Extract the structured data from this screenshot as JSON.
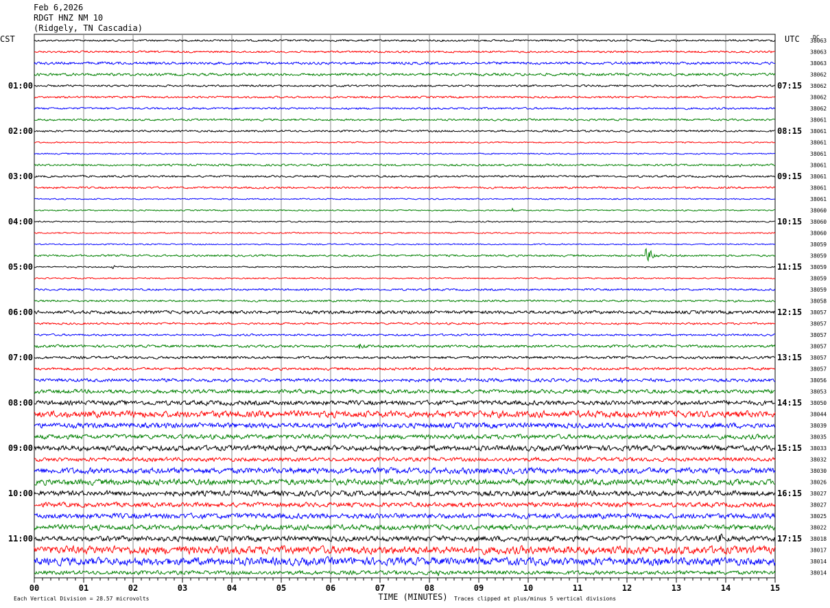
{
  "header": {
    "date": "Feb 6,2026",
    "station": "RDGT HNZ NM 10",
    "location": "(Ridgely, TN Cascadia)"
  },
  "chart_data": {
    "type": "line",
    "title": "",
    "left_axis_label": "CST",
    "right_axis_label": "UTC",
    "right_column_label": "DC",
    "xlabel": "TIME (MINUTES)",
    "xlim": [
      0,
      15
    ],
    "x_ticks": [
      "00",
      "01",
      "02",
      "03",
      "04",
      "05",
      "06",
      "07",
      "08",
      "09",
      "10",
      "11",
      "12",
      "13",
      "14",
      "15"
    ],
    "trace_colors": [
      "#000000",
      "#ff0000",
      "#0000ff",
      "#008000"
    ],
    "trace_count": 48,
    "left_hour_labels": [
      {
        "trace": 4,
        "label": "01:00"
      },
      {
        "trace": 8,
        "label": "02:00"
      },
      {
        "trace": 12,
        "label": "03:00"
      },
      {
        "trace": 16,
        "label": "04:00"
      },
      {
        "trace": 20,
        "label": "05:00"
      },
      {
        "trace": 24,
        "label": "06:00"
      },
      {
        "trace": 28,
        "label": "07:00"
      },
      {
        "trace": 32,
        "label": "08:00"
      },
      {
        "trace": 36,
        "label": "09:00"
      },
      {
        "trace": 40,
        "label": "10:00"
      },
      {
        "trace": 44,
        "label": "11:00"
      }
    ],
    "right_hour_labels": [
      {
        "trace": 4,
        "label": "07:15"
      },
      {
        "trace": 8,
        "label": "08:15"
      },
      {
        "trace": 12,
        "label": "09:15"
      },
      {
        "trace": 16,
        "label": "10:15"
      },
      {
        "trace": 20,
        "label": "11:15"
      },
      {
        "trace": 24,
        "label": "12:15"
      },
      {
        "trace": 28,
        "label": "13:15"
      },
      {
        "trace": 32,
        "label": "14:15"
      },
      {
        "trace": 36,
        "label": "15:15"
      },
      {
        "trace": 40,
        "label": "16:15"
      },
      {
        "trace": 44,
        "label": "17:15"
      }
    ],
    "dc_offsets": [
      "38063",
      "38063",
      "38063",
      "38062",
      "38062",
      "38062",
      "38062",
      "38061",
      "38061",
      "38061",
      "38061",
      "38061",
      "38061",
      "38061",
      "38061",
      "38060",
      "38060",
      "38060",
      "38059",
      "38059",
      "38059",
      "38059",
      "38059",
      "38058",
      "38057",
      "38057",
      "38057",
      "38057",
      "38057",
      "38057",
      "38056",
      "38053",
      "38050",
      "38044",
      "38039",
      "38035",
      "38033",
      "38032",
      "38030",
      "38026",
      "38027",
      "38027",
      "38025",
      "38022",
      "38018",
      "38017",
      "38014",
      "38014"
    ],
    "noise_amplitude": [
      1.5,
      1.5,
      2,
      2,
      1.5,
      1.5,
      1.5,
      1.5,
      1.5,
      1,
      1,
      1.5,
      1.5,
      1.5,
      1,
      1,
      1,
      1,
      1,
      1.5,
      1,
      1,
      1.5,
      1.5,
      2.5,
      1.5,
      1.5,
      2,
      2,
      2,
      2.5,
      3,
      3.5,
      5,
      4,
      3.5,
      4,
      3,
      4.5,
      4.5,
      4,
      3.5,
      4,
      4,
      4,
      6,
      6,
      3
    ],
    "events": [
      {
        "trace": 11,
        "minute": 14.3,
        "amplitude": 4,
        "duration_min": 0.3
      },
      {
        "trace": 15,
        "minute": 9.7,
        "amplitude": 4,
        "duration_min": 0.05
      },
      {
        "trace": 19,
        "minute": 12.4,
        "amplitude": 12,
        "duration_min": 0.5
      },
      {
        "trace": 20,
        "minute": 1.6,
        "amplitude": 3,
        "duration_min": 0.2
      },
      {
        "trace": 27,
        "minute": 6.6,
        "amplitude": 6,
        "duration_min": 0.6
      },
      {
        "trace": 30,
        "minute": 11.9,
        "amplitude": 6,
        "duration_min": 0.2
      },
      {
        "trace": 44,
        "minute": 13.9,
        "amplitude": 9,
        "duration_min": 0.3
      },
      {
        "trace": 47,
        "minute": 8.2,
        "amplitude": 7,
        "duration_min": 0.15
      }
    ],
    "footer_left": "Each Vertical Division =   28.57 microvolts",
    "footer_right": "Traces clipped at plus/minus 5 vertical divisions"
  }
}
